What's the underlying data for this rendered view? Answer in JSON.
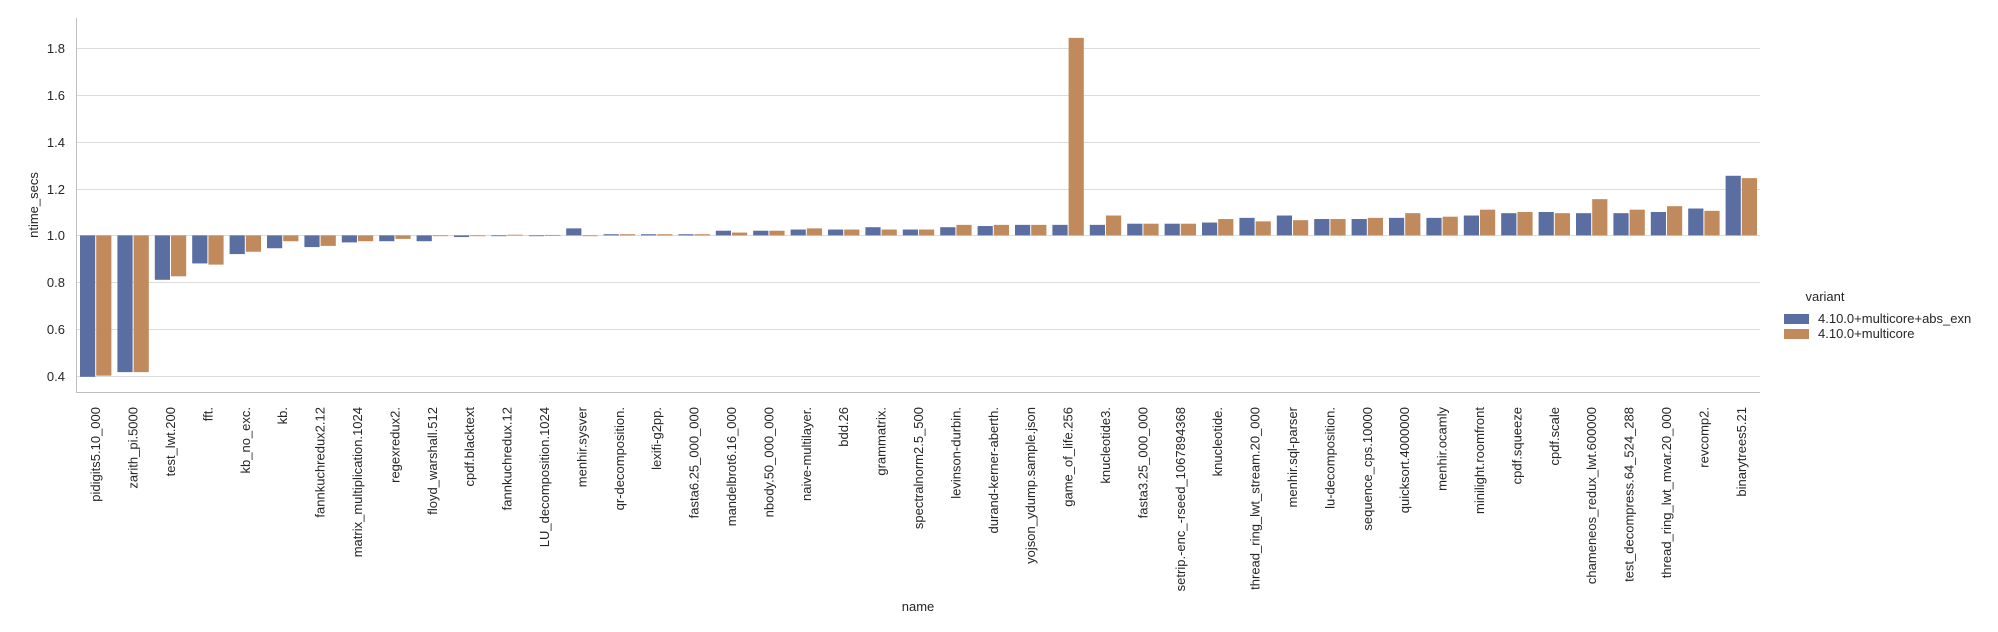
{
  "chart_data": {
    "type": "bar",
    "xlabel": "name",
    "ylabel": "ntime_secs",
    "ylim": [
      0.33,
      1.93
    ],
    "yticks": [
      "0.4",
      "0.6",
      "0.8",
      "1.0",
      "1.2",
      "1.4",
      "1.6",
      "1.8"
    ],
    "grid": true,
    "bar_baseline": 1.0,
    "legend": {
      "title": "variant",
      "placement": "right"
    },
    "categories": [
      "pidigits5.10_000",
      "zarith_pi.5000",
      "test_lwt.200",
      "fft.",
      "kb_no_exc.",
      "kb.",
      "fannkuchredux2.12",
      "matrix_multiplication.1024",
      "regexredux2.",
      "floyd_warshall.512",
      "cpdf.blacktext",
      "fannkuchredux.12",
      "LU_decomposition.1024",
      "menhir.sysver",
      "qr-decomposition.",
      "lexifi-g2pp.",
      "fasta6.25_000_000",
      "mandelbrot6.16_000",
      "nbody.50_000_000",
      "naive-multilayer.",
      "bdd.26",
      "grammatrix.",
      "spectralnorm2.5_500",
      "levinson-durbin.",
      "durand-kerner-aberth.",
      "yojson_ydump.sample.json",
      "game_of_life.256",
      "knucleotide3.",
      "fasta3.25_000_000",
      "setrip.-enc_-rseed_1067894368",
      "knucleotide.",
      "thread_ring_lwt_stream.20_000",
      "menhir.sql-parser",
      "lu-decomposition.",
      "sequence_cps.10000",
      "quicksort.4000000",
      "menhir.ocamly",
      "minilight.roomfront",
      "cpdf.squeeze",
      "cpdf.scale",
      "chameneos_redux_lwt.600000",
      "test_decompress.64_524_288",
      "thread_ring_lwt_mvar.20_000",
      "revcomp2.",
      "binarytrees5.21"
    ],
    "series": [
      {
        "name": "4.10.0+multicore+abs_exn",
        "color": "#5a6ea2",
        "values": [
          0.395,
          0.415,
          0.81,
          0.88,
          0.92,
          0.945,
          0.95,
          0.97,
          0.975,
          0.975,
          0.993,
          0.998,
          1.0,
          1.03,
          1.005,
          1.005,
          1.005,
          1.02,
          1.02,
          1.025,
          1.025,
          1.035,
          1.025,
          1.035,
          1.04,
          1.045,
          1.045,
          1.045,
          1.05,
          1.05,
          1.055,
          1.075,
          1.085,
          1.07,
          1.07,
          1.075,
          1.075,
          1.085,
          1.095,
          1.1,
          1.095,
          1.095,
          1.1,
          1.115,
          1.255
        ]
      },
      {
        "name": "4.10.0+multicore",
        "color": "#c08a5c",
        "values": [
          0.4,
          0.415,
          0.825,
          0.875,
          0.93,
          0.975,
          0.955,
          0.975,
          0.985,
          1.0,
          1.0,
          1.003,
          1.002,
          1.0,
          1.005,
          1.005,
          1.005,
          1.012,
          1.02,
          1.03,
          1.025,
          1.025,
          1.025,
          1.045,
          1.045,
          1.045,
          1.845,
          1.085,
          1.05,
          1.05,
          1.07,
          1.06,
          1.065,
          1.07,
          1.075,
          1.095,
          1.08,
          1.11,
          1.1,
          1.095,
          1.155,
          1.11,
          1.125,
          1.105,
          1.245
        ]
      }
    ]
  }
}
